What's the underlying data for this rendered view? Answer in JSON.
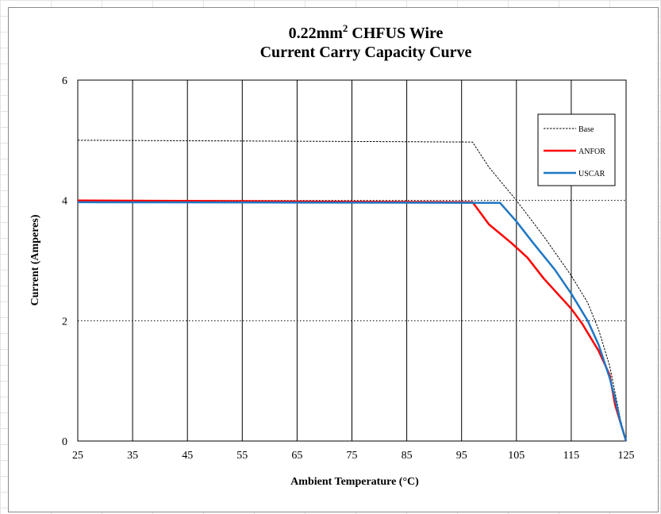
{
  "chart_data": {
    "type": "line",
    "title_line1_prefix": "0.22mm",
    "title_line1_sup": "2",
    "title_line1_suffix": " CHFUS Wire",
    "title_line2": "Current Carry Capacity Curve",
    "xlabel": "Ambient Temperature (°C)",
    "ylabel": "Current (Amperes)",
    "xlim": [
      25,
      125
    ],
    "ylim": [
      0,
      6
    ],
    "xticks": [
      "25",
      "35",
      "45",
      "55",
      "65",
      "75",
      "85",
      "95",
      "105",
      "115",
      "125"
    ],
    "yticks": [
      "0",
      "2",
      "4",
      "6"
    ],
    "grid": "vertical solid at each x tick; horizontal dotted at 2 and 4",
    "legend_position": "top-right",
    "series": [
      {
        "name": "Base",
        "color": "#000000",
        "style": "dashed",
        "x": [
          25,
          97,
          100,
          105,
          110,
          115,
          118,
          120,
          122,
          123,
          124,
          125
        ],
        "y": [
          5.0,
          4.97,
          4.55,
          4.0,
          3.4,
          2.75,
          2.3,
          1.85,
          1.25,
          0.8,
          0.35,
          0
        ]
      },
      {
        "name": "ANFOR",
        "color": "#ff0000",
        "style": "solid",
        "x": [
          25,
          97,
          100,
          104,
          107,
          110,
          115,
          117,
          120,
          122,
          123,
          124,
          125
        ],
        "y": [
          4.0,
          3.97,
          3.6,
          3.3,
          3.05,
          2.7,
          2.2,
          1.95,
          1.5,
          1.1,
          0.6,
          0.3,
          0
        ]
      },
      {
        "name": "USCAR",
        "color": "#1f77c4",
        "style": "solid",
        "x": [
          25,
          102,
          105,
          108,
          112,
          115,
          118,
          120,
          122,
          123,
          124,
          125
        ],
        "y": [
          3.97,
          3.96,
          3.65,
          3.3,
          2.85,
          2.45,
          2.0,
          1.6,
          1.05,
          0.7,
          0.3,
          0
        ]
      }
    ]
  }
}
